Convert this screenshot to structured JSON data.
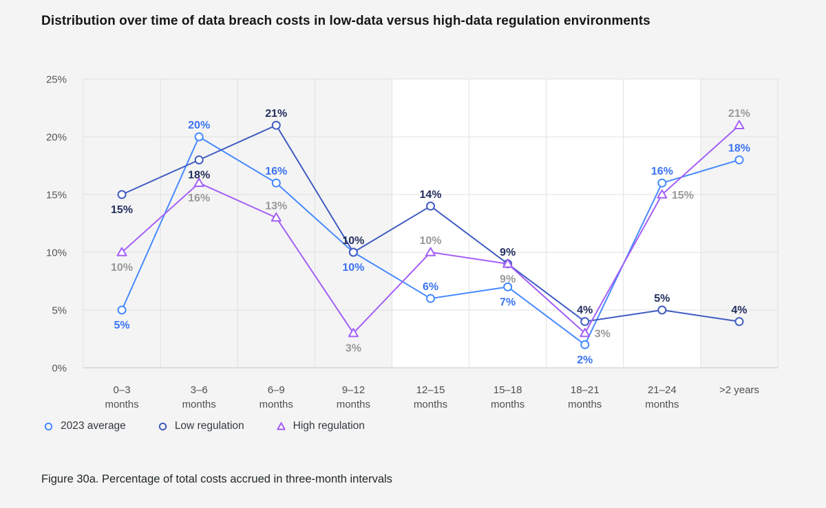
{
  "page": {
    "background": "#f4f4f4",
    "title": "Distribution over time of data breach costs in low-data versus high-data regulation environments",
    "caption": "Figure 30a. Percentage of total costs accrued in three-month intervals"
  },
  "chart_data": {
    "type": "line",
    "title": "Distribution over time of data breach costs in low-data versus high-data regulation environments",
    "xlabel": "",
    "ylabel": "",
    "ylim": [
      0,
      25
    ],
    "ytick_step": 5,
    "ytick_labels": [
      "0%",
      "5%",
      "10%",
      "15%",
      "20%",
      "25%"
    ],
    "grid": true,
    "legend_position": "bottom-left",
    "categories": [
      "0–3 months",
      "3–6 months",
      "6–9 months",
      "9–12 months",
      "12–15 months",
      "15–18 months",
      "18–21 months",
      "21–24 months",
      ">2 years"
    ],
    "category_labels": [
      [
        "0–3",
        "months"
      ],
      [
        "3–6",
        "months"
      ],
      [
        "6–9",
        "months"
      ],
      [
        "9–12",
        "months"
      ],
      [
        "12–15",
        "months"
      ],
      [
        "15–18",
        "months"
      ],
      [
        "18–21",
        "months"
      ],
      [
        "21–24",
        "months"
      ],
      [
        ">2 years"
      ]
    ],
    "highlight_band": {
      "from_column": 4,
      "to_column": 8,
      "color": "#ffffff"
    },
    "style": {
      "grid_color": "#e0e0e0",
      "axis_color": "#c6c6c6",
      "marker_fill": "#ffffff"
    },
    "series": [
      {
        "name": "2023 average",
        "marker": "circle",
        "color": "#4589ff",
        "label_color": "#3a73f3",
        "values": [
          5,
          20,
          16,
          10,
          6,
          7,
          2,
          16,
          18
        ],
        "value_labels": [
          "5%",
          "20%",
          "16%",
          "10%",
          "6%",
          "7%",
          "2%",
          "16%",
          "18%"
        ],
        "label_positions": [
          "below",
          "above",
          "above",
          "below",
          "above",
          "below",
          "below",
          "above",
          "above"
        ]
      },
      {
        "name": "Low regulation",
        "marker": "circle",
        "color": "#3f5bc1",
        "label_color": "#242f5e",
        "values": [
          15,
          18,
          21,
          10,
          14,
          9,
          4,
          5,
          4
        ],
        "value_labels": [
          "15%",
          "18%",
          "21%",
          "10%",
          "14%",
          "9%",
          "4%",
          "5%",
          "4%"
        ],
        "label_positions": [
          "below",
          "below",
          "above",
          "above",
          "above",
          "above",
          "above",
          "above",
          "above"
        ]
      },
      {
        "name": "High regulation",
        "marker": "triangle",
        "color": "#a35ef6",
        "label_color": "#999999",
        "values": [
          10,
          16,
          13,
          3,
          10,
          9,
          3,
          15,
          21
        ],
        "value_labels": [
          "10%",
          "16%",
          "13%",
          "3%",
          "10%",
          "9%",
          "3%",
          "15%",
          "21%"
        ],
        "label_positions": [
          "below",
          "below",
          "above",
          "below",
          "above",
          "below",
          "right",
          "right",
          "above"
        ]
      }
    ]
  }
}
